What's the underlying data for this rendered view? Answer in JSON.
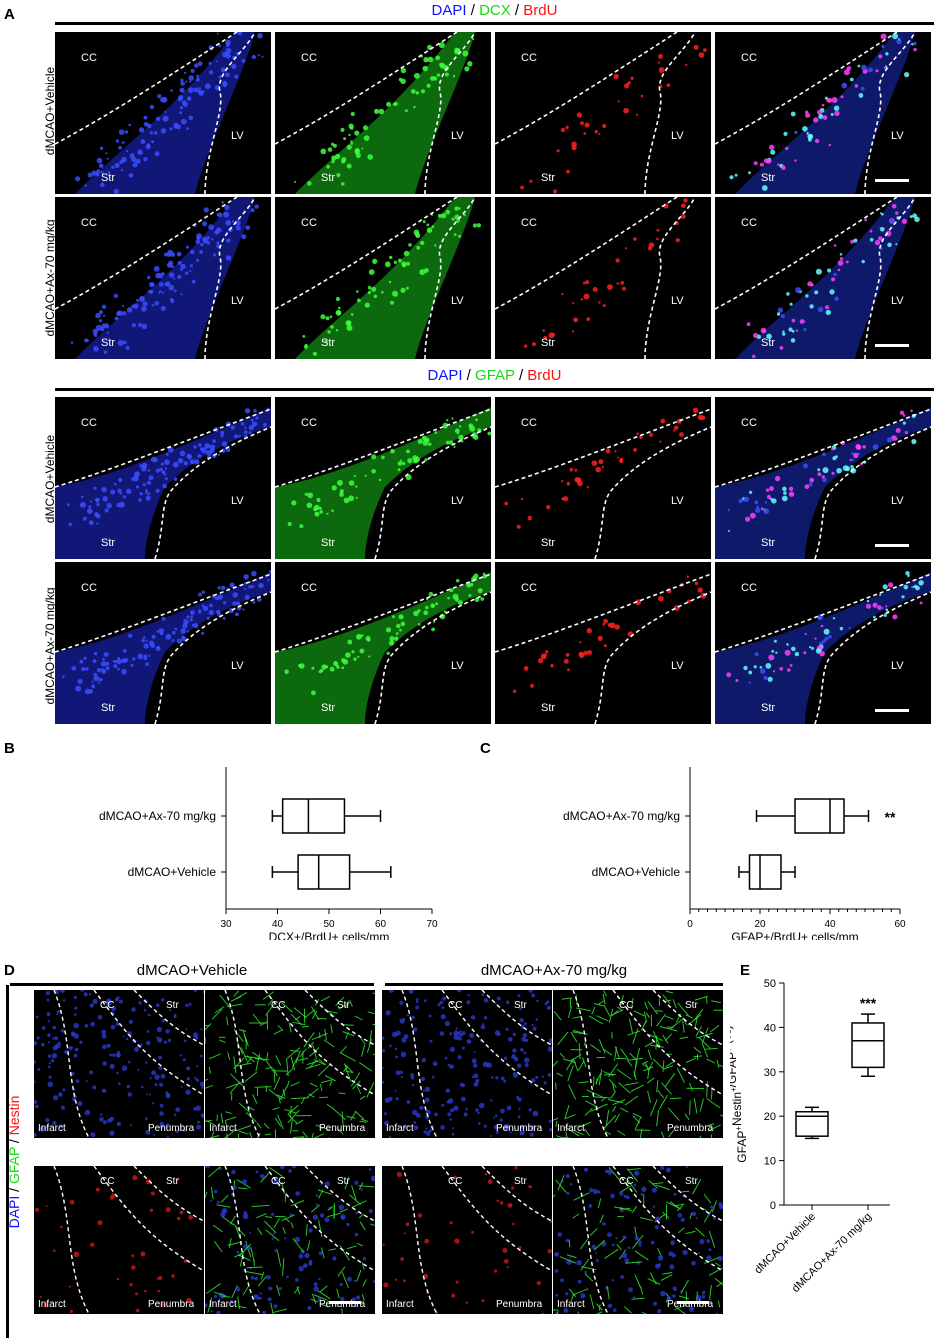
{
  "panelA": {
    "label": "A",
    "header1": {
      "c1": "DAPI",
      "sep1": " / ",
      "c2": "DCX",
      "sep2": " / ",
      "c3": "BrdU"
    },
    "header2": {
      "c1": "DAPI",
      "sep1": " / ",
      "c2": "GFAP",
      "sep2": " / ",
      "c3": "BrdU"
    },
    "row_labels": [
      "dMCAO+Vehicle",
      "dMCAO+Ax-70 mg/kg",
      "dMCAO+Vehicle",
      "dMCAO+Ax-70 mg/kg"
    ],
    "region_labels": {
      "cc": "CC",
      "lv": "LV",
      "str": "Str"
    },
    "colors": {
      "blue": "#1010ff",
      "green": "#16d816",
      "red": "#ff1010"
    }
  },
  "panelB": {
    "label": "B",
    "chart_data": {
      "type": "box",
      "orientation": "horizontal",
      "categories": [
        "dMCAO+Ax-70 mg/kg",
        "dMCAO+Vehicle"
      ],
      "boxes": [
        {
          "name": "dMCAO+Ax-70 mg/kg",
          "min": 39,
          "q1": 41,
          "median": 46,
          "q3": 53,
          "max": 60
        },
        {
          "name": "dMCAO+Vehicle",
          "min": 39,
          "q1": 44,
          "median": 48,
          "q3": 54,
          "max": 62
        }
      ],
      "xlabel": "DCX+/BrdU+ cells/mm",
      "xlim": [
        30,
        70
      ],
      "xticks": [
        30,
        40,
        50,
        60,
        70
      ]
    }
  },
  "panelC": {
    "label": "C",
    "chart_data": {
      "type": "box",
      "orientation": "horizontal",
      "categories": [
        "dMCAO+Ax-70 mg/kg",
        "dMCAO+Vehicle"
      ],
      "boxes": [
        {
          "name": "dMCAO+Ax-70 mg/kg",
          "min": 19,
          "q1": 30,
          "median": 40,
          "q3": 44,
          "max": 51,
          "annotation": "**"
        },
        {
          "name": "dMCAO+Vehicle",
          "min": 14,
          "q1": 17,
          "median": 20,
          "q3": 26,
          "max": 30
        }
      ],
      "xlabel": "GFAP+/BrdU+ cells/mm",
      "xlim": [
        0,
        60
      ],
      "xticks": [
        0,
        20,
        40,
        60
      ]
    }
  },
  "panelD": {
    "label": "D",
    "group1": "dMCAO+Vehicle",
    "group2": "dMCAO+Ax-70 mg/kg",
    "side_label": {
      "c1": "DAPI",
      "sep1": " / ",
      "c2": "GFAP",
      "sep2": " / ",
      "c3": "Nestin"
    },
    "region_labels": {
      "cc": "CC",
      "str": "Str",
      "infarct": "Infarct",
      "penumbra": "Penumbra"
    }
  },
  "panelE": {
    "label": "E",
    "chart_data": {
      "type": "box",
      "orientation": "vertical",
      "categories": [
        "dMCAO+Vehicle",
        "dMCAO+Ax-70 mg/kg"
      ],
      "boxes": [
        {
          "name": "dMCAO+Vehicle",
          "min": 15,
          "q1": 15.5,
          "median": 20,
          "q3": 21,
          "max": 22
        },
        {
          "name": "dMCAO+Ax-70 mg/kg",
          "min": 29,
          "q1": 31,
          "median": 37,
          "q3": 41,
          "max": 43,
          "annotation": "***"
        }
      ],
      "ylabel_parts": {
        "a": "GFAP",
        "b": "+",
        "c": "Nestin",
        "d": "+",
        "e": "/GFAP",
        "f": "+",
        "g": " (%)"
      },
      "ylim": [
        0,
        50
      ],
      "yticks": [
        0,
        10,
        20,
        30,
        40,
        50
      ]
    }
  }
}
